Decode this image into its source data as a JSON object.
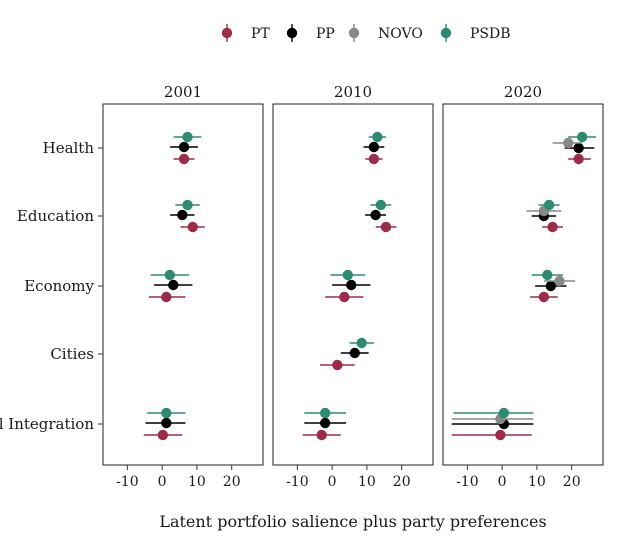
{
  "chart_data": {
    "type": "scatter",
    "subtype": "coefficient-plot-with-intervals",
    "xlabel": "Latent portfolio salience plus party preferences",
    "ylabel": "",
    "xlim": [
      -17,
      29
    ],
    "xticks": [
      -10,
      0,
      10,
      20
    ],
    "xtick_labels": [
      "-10",
      "0",
      "10",
      "20"
    ],
    "categories": [
      "Health",
      "Education",
      "Economy",
      "Cities",
      "National Integration"
    ],
    "category_labels": [
      "Health",
      "Education",
      "Economy",
      "Cities",
      "nal Integration"
    ],
    "legend": {
      "position": "top",
      "entries": [
        {
          "name": "PT",
          "color": "#9b2d4a"
        },
        {
          "name": "PP",
          "color": "#000000"
        },
        {
          "name": "NOVO",
          "color": "#888888"
        },
        {
          "name": "PSDB",
          "color": "#2e8b73"
        }
      ]
    },
    "panels": [
      {
        "title": "2001",
        "series": [
          {
            "name": "PSDB",
            "points": [
              {
                "category": "Health",
                "x": 7.3,
                "lo": 3.3,
                "hi": 11.3
              },
              {
                "category": "Education",
                "x": 7.3,
                "lo": 3.8,
                "hi": 10.8
              },
              {
                "category": "Economy",
                "x": 2.2,
                "lo": -3.3,
                "hi": 7.7
              },
              {
                "category": "National Integration",
                "x": 1.2,
                "lo": -4.3,
                "hi": 6.7
              }
            ]
          },
          {
            "name": "PP",
            "points": [
              {
                "category": "Health",
                "x": 6.3,
                "lo": 2.3,
                "hi": 10.3
              },
              {
                "category": "Education",
                "x": 5.8,
                "lo": 2.3,
                "hi": 9.3
              },
              {
                "category": "Economy",
                "x": 3.2,
                "lo": -2.3,
                "hi": 8.7
              },
              {
                "category": "National Integration",
                "x": 1.2,
                "lo": -4.8,
                "hi": 6.7
              }
            ]
          },
          {
            "name": "PT",
            "points": [
              {
                "category": "Health",
                "x": 6.3,
                "lo": 3.3,
                "hi": 9.3
              },
              {
                "category": "Education",
                "x": 8.8,
                "lo": 5.3,
                "hi": 12.3
              },
              {
                "category": "Economy",
                "x": 1.2,
                "lo": -3.8,
                "hi": 6.7
              },
              {
                "category": "National Integration",
                "x": 0.2,
                "lo": -5.3,
                "hi": 5.8
              }
            ]
          }
        ]
      },
      {
        "title": "2010",
        "series": [
          {
            "name": "PSDB",
            "points": [
              {
                "category": "Health",
                "x": 13.0,
                "lo": 10.5,
                "hi": 15.5
              },
              {
                "category": "Education",
                "x": 14.0,
                "lo": 11.0,
                "hi": 17.0
              },
              {
                "category": "Economy",
                "x": 4.5,
                "lo": -0.5,
                "hi": 9.5
              },
              {
                "category": "Cities",
                "x": 8.5,
                "lo": 5.0,
                "hi": 12.0
              },
              {
                "category": "National Integration",
                "x": -2.0,
                "lo": -8.0,
                "hi": 4.0
              }
            ]
          },
          {
            "name": "PP",
            "points": [
              {
                "category": "Health",
                "x": 12.0,
                "lo": 9.0,
                "hi": 15.0
              },
              {
                "category": "Education",
                "x": 12.5,
                "lo": 9.5,
                "hi": 15.5
              },
              {
                "category": "Economy",
                "x": 5.5,
                "lo": 0.0,
                "hi": 11.0
              },
              {
                "category": "Cities",
                "x": 6.5,
                "lo": 2.5,
                "hi": 10.5
              },
              {
                "category": "National Integration",
                "x": -2.0,
                "lo": -8.0,
                "hi": 4.0
              }
            ]
          },
          {
            "name": "PT",
            "points": [
              {
                "category": "Health",
                "x": 12.0,
                "lo": 9.5,
                "hi": 14.5
              },
              {
                "category": "Education",
                "x": 15.5,
                "lo": 12.5,
                "hi": 18.5
              },
              {
                "category": "Economy",
                "x": 3.5,
                "lo": -2.0,
                "hi": 9.0
              },
              {
                "category": "Cities",
                "x": 1.5,
                "lo": -3.5,
                "hi": 6.5
              },
              {
                "category": "National Integration",
                "x": -3.0,
                "lo": -8.5,
                "hi": 2.5
              }
            ]
          }
        ]
      },
      {
        "title": "2020",
        "series": [
          {
            "name": "PSDB",
            "points": [
              {
                "category": "Health",
                "x": 23.0,
                "lo": 19.0,
                "hi": 27.0
              },
              {
                "category": "Education",
                "x": 13.5,
                "lo": 10.5,
                "hi": 16.5
              },
              {
                "category": "Economy",
                "x": 13.0,
                "lo": 8.5,
                "hi": 17.5
              },
              {
                "category": "National Integration",
                "x": 0.5,
                "lo": -14.0,
                "hi": 9.0
              }
            ]
          },
          {
            "name": "NOVO",
            "points": [
              {
                "category": "Health",
                "x": 19.0,
                "lo": 14.5,
                "hi": 23.0
              },
              {
                "category": "Education",
                "x": 12.0,
                "lo": 7.0,
                "hi": 17.0
              },
              {
                "category": "Economy",
                "x": 16.5,
                "lo": 12.0,
                "hi": 21.0
              },
              {
                "category": "National Integration",
                "x": -0.5,
                "lo": -14.5,
                "hi": 9.0
              }
            ]
          },
          {
            "name": "PP",
            "points": [
              {
                "category": "Health",
                "x": 22.0,
                "lo": 18.0,
                "hi": 26.5
              },
              {
                "category": "Education",
                "x": 12.0,
                "lo": 8.5,
                "hi": 15.5
              },
              {
                "category": "Economy",
                "x": 14.0,
                "lo": 9.5,
                "hi": 18.5
              },
              {
                "category": "National Integration",
                "x": 0.5,
                "lo": -14.5,
                "hi": 9.0
              }
            ]
          },
          {
            "name": "PT",
            "points": [
              {
                "category": "Health",
                "x": 22.0,
                "lo": 19.0,
                "hi": 25.5
              },
              {
                "category": "Education",
                "x": 14.5,
                "lo": 11.5,
                "hi": 17.5
              },
              {
                "category": "Economy",
                "x": 12.0,
                "lo": 8.0,
                "hi": 16.0
              },
              {
                "category": "National Integration",
                "x": -0.5,
                "lo": -14.5,
                "hi": 8.5
              }
            ]
          }
        ]
      }
    ]
  }
}
